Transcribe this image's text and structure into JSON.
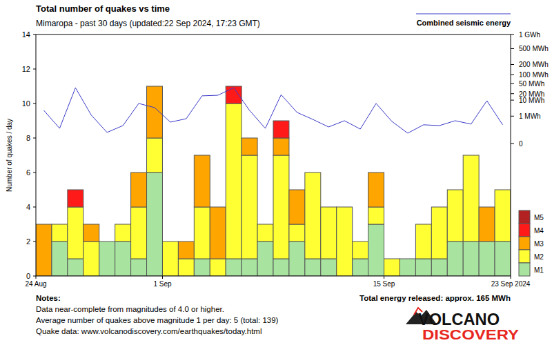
{
  "chart_data": {
    "type": "bar",
    "title": "Total number of quakes vs time",
    "subtitle": "Mimaropa - past 30 days (updated:22 Sep 2024, 17:23 GMT)",
    "y_label": "Number of quakes / day",
    "stacked": true,
    "grid": false,
    "legend": "lower right",
    "x": [
      0.5,
      1.5,
      2.5,
      3.5,
      4.5,
      5.5,
      6.5,
      7.5,
      8.5,
      9.5,
      10.5,
      11.5,
      12.5,
      13.5,
      14.5,
      15.5,
      16.5,
      17.5,
      18.5,
      19.5,
      20.5,
      21.5,
      22.5,
      23.5,
      24.5,
      25.5,
      26.5,
      27.5,
      28.5,
      29.5
    ],
    "xlim": [
      0,
      30
    ],
    "xticks": [
      {
        "value": 0,
        "label": "24 Aug"
      },
      {
        "value": 8,
        "label": "1 Sep"
      },
      {
        "value": 22,
        "label": "15 Sep"
      },
      {
        "value": 30,
        "label": "23 Sep 2024"
      }
    ],
    "ylim": [
      0,
      14
    ],
    "yticks": [
      0,
      2,
      4,
      6,
      8,
      10,
      12,
      14
    ],
    "y2lim": [
      0,
      1000
    ],
    "y2ticks": [
      {
        "value": 1000,
        "label": "1 GWh"
      },
      {
        "value": 500,
        "label": "500 MWh"
      },
      {
        "value": 200,
        "label": "200 MWh"
      },
      {
        "value": 100,
        "label": "100 MWh"
      },
      {
        "value": 50,
        "label": "50 MWh"
      },
      {
        "value": 20,
        "label": "20 MWh"
      },
      {
        "value": 10,
        "label": "10 MWh"
      },
      {
        "value": 1,
        "label": "1 MWh"
      },
      0
    ],
    "series": [
      {
        "name": "M1",
        "color": "#a8e4a0",
        "values": [
          0,
          2,
          1,
          0,
          2,
          2,
          1,
          6,
          0,
          0,
          1,
          0,
          1,
          1,
          2,
          1,
          2,
          1,
          1,
          0,
          1,
          3,
          0,
          1,
          1,
          1,
          2,
          2,
          2,
          2
        ]
      },
      {
        "name": "M2",
        "color": "#ffff33",
        "values": [
          0,
          1,
          3,
          2,
          0,
          1,
          3,
          2,
          2,
          1,
          3,
          1,
          9,
          6,
          1,
          6,
          1,
          5,
          3,
          4,
          1,
          1,
          1,
          0,
          2,
          3,
          3,
          5,
          0,
          3
        ]
      },
      {
        "name": "M3",
        "color": "#ffa500",
        "values": [
          3,
          0,
          0,
          1,
          0,
          0,
          2,
          3,
          0,
          1,
          3,
          3,
          0,
          1,
          0,
          1,
          2,
          0,
          0,
          0,
          0,
          2,
          0,
          0,
          0,
          0,
          0,
          0,
          2,
          0
        ]
      },
      {
        "name": "M4",
        "color": "#ff1a1a",
        "values": [
          0,
          0,
          1,
          0,
          0,
          0,
          0,
          0,
          0,
          0,
          0,
          0,
          1,
          0,
          0,
          1,
          0,
          0,
          0,
          0,
          0,
          0,
          0,
          0,
          0,
          0,
          0,
          0,
          0,
          0
        ]
      },
      {
        "name": "M5",
        "color": "#b22222",
        "values": [
          0,
          0,
          0,
          0,
          0,
          0,
          0,
          0,
          0,
          0,
          0,
          0,
          0,
          0,
          0,
          0,
          0,
          0,
          0,
          0,
          0,
          0,
          0,
          0,
          0,
          0,
          0,
          0,
          0,
          0
        ]
      },
      {
        "name": "Combined seismic energy",
        "type": "line",
        "axis": "y2",
        "color": "#3a3ac8",
        "values": [
          2.6,
          0.052,
          35,
          1.2,
          0.011,
          0.12,
          6.7,
          3.9,
          0.29,
          0.61,
          16,
          17,
          35,
          2.6,
          0.052,
          18,
          1.9,
          0.53,
          0.081,
          0.4,
          0.041,
          6.7,
          0.34,
          0.0077,
          0.15,
          0.12,
          0.4,
          0.18,
          9.3,
          0.15
        ]
      }
    ],
    "notes": [
      "Notes:",
      "Data near-complete from magnitudes of 4.0 or higher.",
      "Average number of quakes above magnitude 1 per day: 5 (total: 139)",
      "Quake data: www.volcanodiscovery.com/earthquakes/today.html"
    ],
    "annotation": "Total energy released: approx. 165 MWh",
    "logo": [
      "VOLCANO",
      "DISCOVERY"
    ]
  }
}
